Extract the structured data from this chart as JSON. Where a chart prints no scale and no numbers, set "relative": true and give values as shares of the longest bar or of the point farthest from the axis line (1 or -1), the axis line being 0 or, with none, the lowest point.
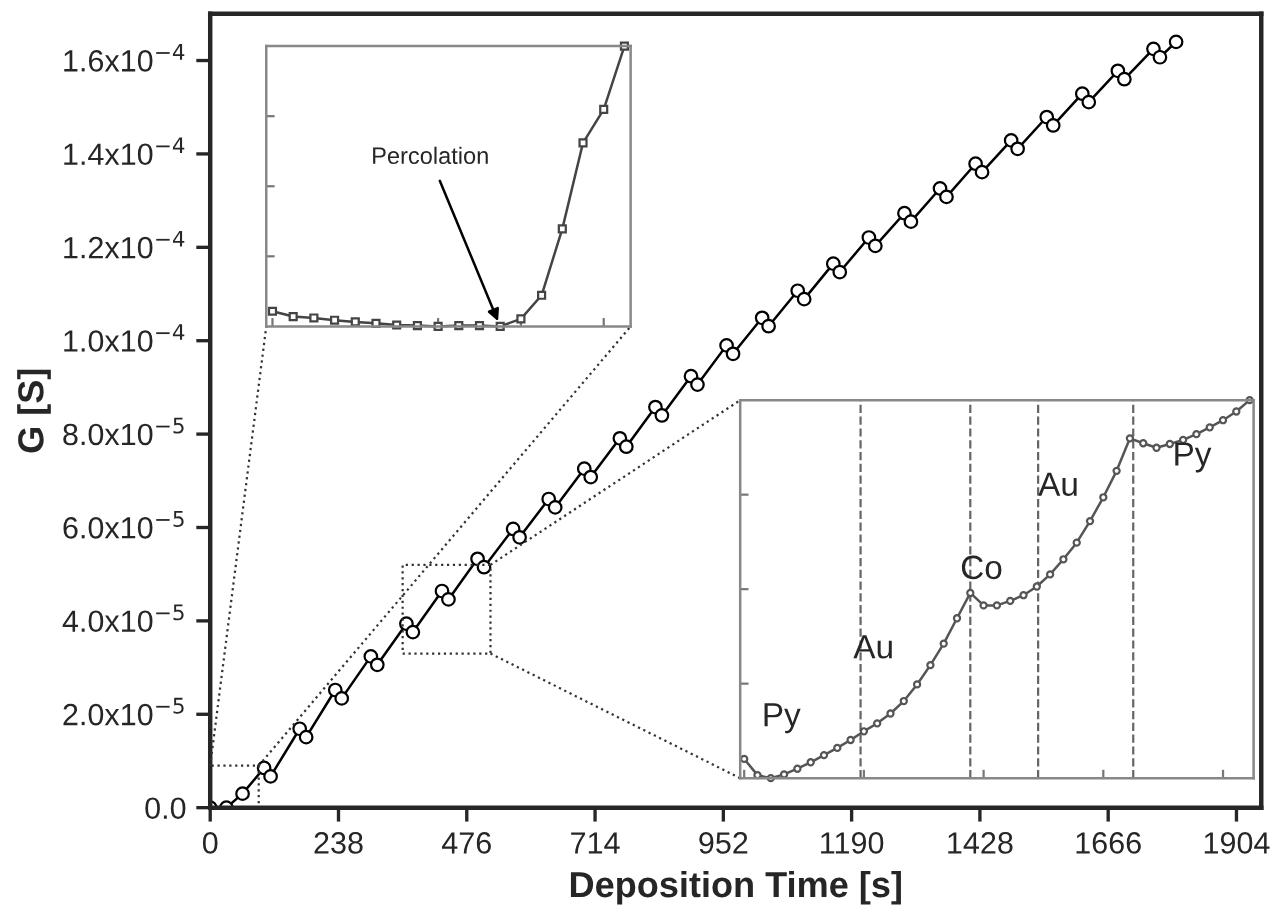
{
  "chart_data": [
    {
      "type": "line",
      "xlabel": "Deposition Time [s]",
      "ylabel": "G [S]",
      "marker": "circle",
      "line_style": "solid",
      "xlim": [
        0,
        1950
      ],
      "xticks": [
        0,
        238,
        476,
        714,
        952,
        1190,
        1428,
        1666,
        1904
      ],
      "ylim": [
        0,
        0.00017
      ],
      "yticks": [
        {
          "value": 0,
          "label": "0.0"
        },
        {
          "value": 2e-05,
          "label": "2.0x10$^{−5}$"
        },
        {
          "value": 4e-05,
          "label": "4.0x10$^{−5}$"
        },
        {
          "value": 6e-05,
          "label": "6.0x10$^{−5}$"
        },
        {
          "value": 8e-05,
          "label": "8.0x10$^{−5}$"
        },
        {
          "value": 0.0001,
          "label": "1.0x10$^{−4}$"
        },
        {
          "value": 0.00012,
          "label": "1.2x10$^{−4}$"
        },
        {
          "value": 0.00014,
          "label": "1.4x10$^{−4}$"
        },
        {
          "value": 0.00016,
          "label": "1.6x10$^{−4}$"
        }
      ],
      "series": [
        {
          "color": "#000000",
          "x": [
            0,
            30,
            60,
            100,
            112,
            166,
            178,
            232,
            244,
            298,
            310,
            364,
            376,
            430,
            442,
            496,
            508,
            562,
            574,
            628,
            640,
            694,
            706,
            760,
            772,
            826,
            838,
            892,
            904,
            958,
            970,
            1024,
            1036,
            1090,
            1102,
            1156,
            1168,
            1222,
            1234,
            1288,
            1300,
            1354,
            1366,
            1420,
            1432,
            1486,
            1498,
            1552,
            1564,
            1618,
            1630,
            1684,
            1696,
            1750,
            1762,
            1792
          ],
          "values": [
            0,
            0,
            3e-06,
            8.5e-06,
            6.7e-06,
            1.69e-05,
            1.51e-05,
            2.52e-05,
            2.34e-05,
            3.24e-05,
            3.06e-05,
            3.94e-05,
            3.76e-05,
            4.64e-05,
            4.46e-05,
            5.33e-05,
            5.15e-05,
            5.97e-05,
            5.79e-05,
            6.61e-05,
            6.43e-05,
            7.26e-05,
            7.08e-05,
            7.91e-05,
            7.73e-05,
            8.58e-05,
            8.4e-05,
            9.24e-05,
            9.06e-05,
            9.9e-05,
            9.72e-05,
            0.0001049,
            0.0001031,
            0.0001107,
            0.0001089,
            0.0001165,
            0.0001147,
            0.0001221,
            0.0001203,
            0.0001273,
            0.0001255,
            0.0001326,
            0.0001308,
            0.0001379,
            0.0001361,
            0.0001429,
            0.0001411,
            0.0001479,
            0.0001461,
            0.0001529,
            0.0001511,
            0.0001578,
            0.000156,
            0.0001625,
            0.0001607,
            0.000164
          ]
        }
      ]
    },
    {
      "type": "line",
      "relative": true,
      "marker": "square",
      "line_style": "solid",
      "tick_labels": false,
      "categories": [
        null,
        null,
        null,
        null,
        null,
        null,
        null,
        null,
        null,
        null,
        null,
        null,
        null,
        null,
        null,
        null,
        null,
        null
      ],
      "annotations": [
        "Percolation"
      ],
      "series": [
        {
          "color": "#444444",
          "values": [
            0.054,
            0.035,
            0.03,
            0.022,
            0.016,
            0.011,
            0.005,
            0.003,
            0,
            0.003,
            0.003,
            0,
            0.027,
            0.111,
            0.348,
            0.655,
            0.774,
            1
          ]
        }
      ]
    },
    {
      "type": "line",
      "relative": true,
      "marker": "circle",
      "line_style": "solid",
      "tick_labels": false,
      "categories": [
        null,
        null,
        null,
        null,
        null,
        null,
        null,
        null,
        null,
        null,
        null,
        null,
        null,
        null,
        null,
        null,
        null,
        null,
        null,
        null,
        null,
        null,
        null,
        null,
        null,
        null,
        null,
        null,
        null,
        null,
        null,
        null,
        null,
        null,
        null,
        null,
        null,
        null,
        null
      ],
      "annotations": [
        "Py",
        "Au",
        "Co",
        "Au",
        "Py"
      ],
      "series": [
        {
          "color": "#555555",
          "values": [
            0.051,
            0.008,
            0,
            0.01,
            0.025,
            0.042,
            0.061,
            0.08,
            0.101,
            0.124,
            0.145,
            0.171,
            0.204,
            0.248,
            0.299,
            0.356,
            0.423,
            0.49,
            0.457,
            0.457,
            0.469,
            0.484,
            0.507,
            0.539,
            0.579,
            0.623,
            0.68,
            0.743,
            0.813,
            0.899,
            0.886,
            0.874,
            0.884,
            0.895,
            0.91,
            0.928,
            0.947,
            0.97,
            1
          ]
        }
      ]
    }
  ]
}
